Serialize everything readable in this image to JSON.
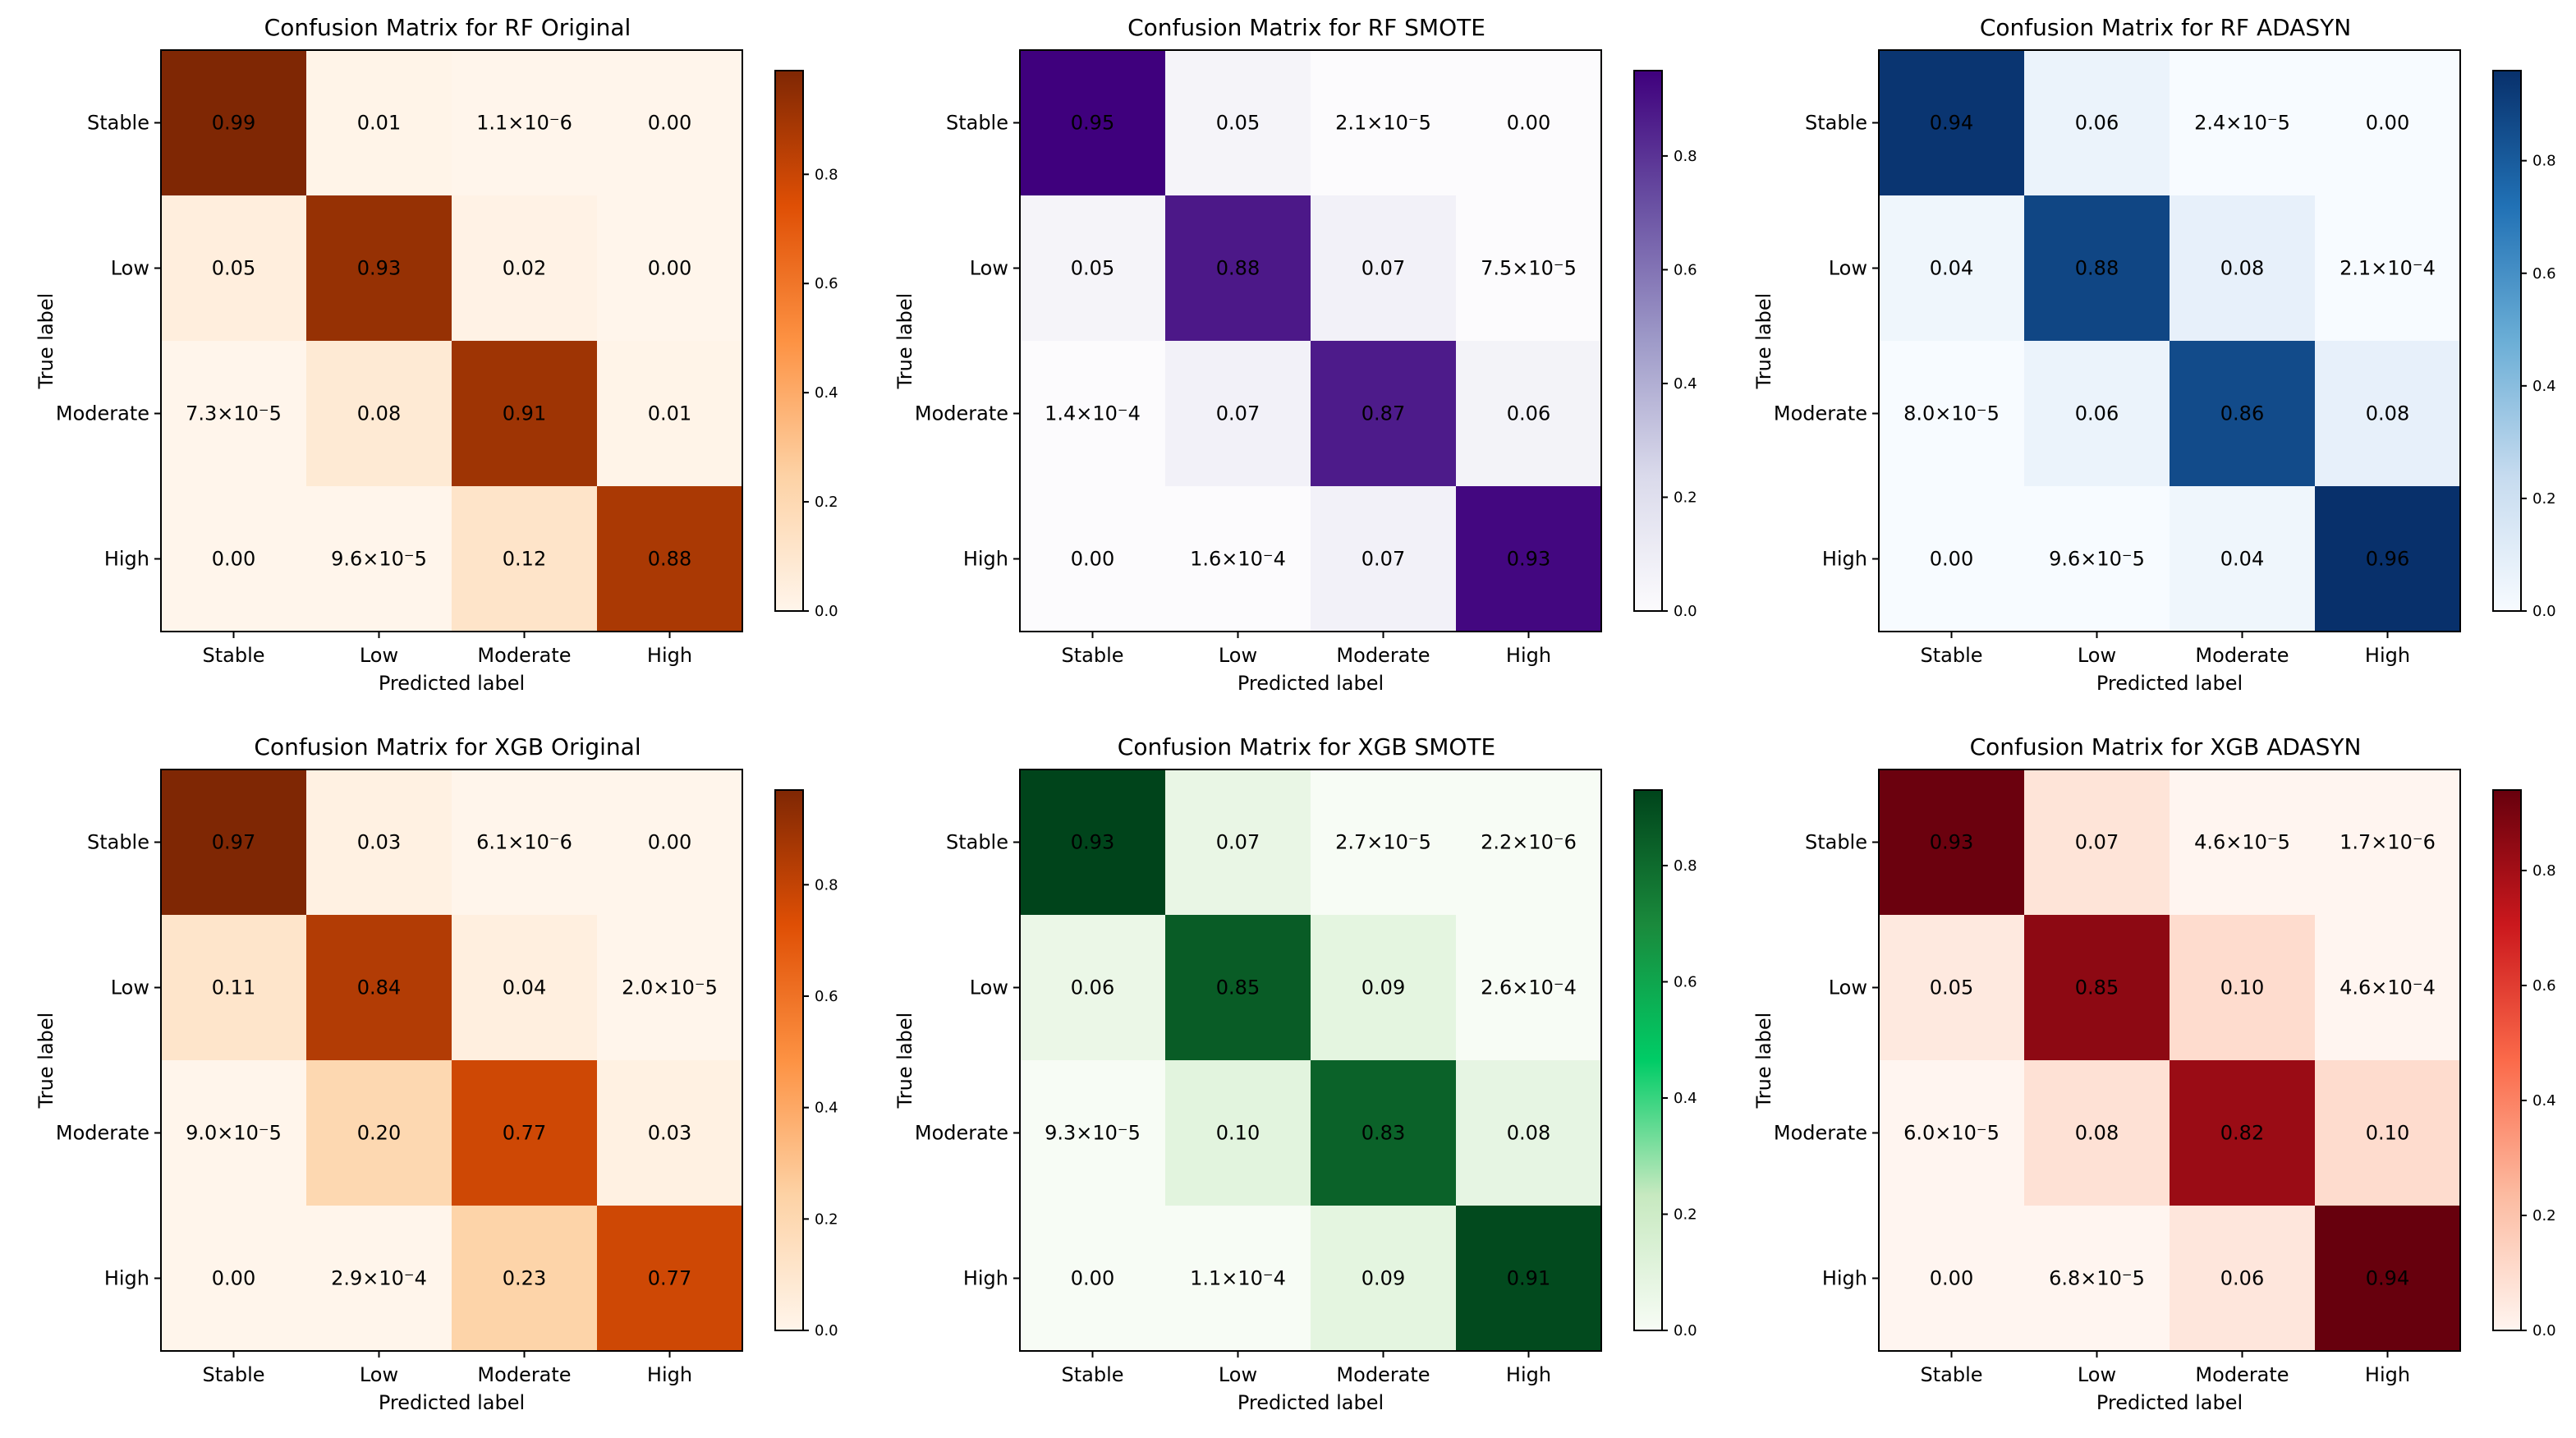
{
  "chart_data": [
    {
      "type": "heatmap",
      "title": "Confusion Matrix for RF Original",
      "xlabel": "Predicted label",
      "ylabel": "True label",
      "x_ticks": [
        "Stable",
        "Low",
        "Moderate",
        "High"
      ],
      "y_ticks": [
        "Stable",
        "Low",
        "Moderate",
        "High"
      ],
      "values": [
        [
          0.99,
          0.01,
          1.1e-06,
          0.0
        ],
        [
          0.05,
          0.93,
          0.02,
          0.0
        ],
        [
          7.3e-05,
          0.08,
          0.91,
          0.01
        ],
        [
          0.0,
          9.6e-05,
          0.12,
          0.88
        ]
      ],
      "labels": [
        [
          "0.99",
          "0.01",
          "1.1×10⁻6",
          "0.00"
        ],
        [
          "0.05",
          "0.93",
          "0.02",
          "0.00"
        ],
        [
          "7.3×10⁻5",
          "0.08",
          "0.91",
          "0.01"
        ],
        [
          "0.00",
          "9.6×10⁻5",
          "0.12",
          "0.88"
        ]
      ],
      "colorscale": [
        "#fff5eb",
        "#fdd2a5",
        "#fd9243",
        "#df4f05",
        "#7f2704"
      ],
      "vmin": 0,
      "vmax": 0.99,
      "colorbar_ticks": [
        0.0,
        0.2,
        0.4,
        0.6,
        0.8
      ],
      "colorbar_tick_labels": [
        "0.0",
        "0.2",
        "0.4",
        "0.6",
        "0.8"
      ]
    },
    {
      "type": "heatmap",
      "title": "Confusion Matrix for RF SMOTE",
      "xlabel": "Predicted label",
      "ylabel": "True label",
      "x_ticks": [
        "Stable",
        "Low",
        "Moderate",
        "High"
      ],
      "y_ticks": [
        "Stable",
        "Low",
        "Moderate",
        "High"
      ],
      "values": [
        [
          0.95,
          0.05,
          2.1e-05,
          0.0
        ],
        [
          0.05,
          0.88,
          0.07,
          7.5e-05
        ],
        [
          0.00014,
          0.07,
          0.87,
          0.06
        ],
        [
          0.0,
          0.00016,
          0.07,
          0.93
        ]
      ],
      "labels": [
        [
          "0.95",
          "0.05",
          "2.1×10⁻5",
          "0.00"
        ],
        [
          "0.05",
          "0.88",
          "0.07",
          "7.5×10⁻5"
        ],
        [
          "1.4×10⁻4",
          "0.07",
          "0.87",
          "0.06"
        ],
        [
          "0.00",
          "1.6×10⁻4",
          "0.07",
          "0.93"
        ]
      ],
      "colorscale": [
        "#fcfbfd",
        "#dadaeb",
        "#9e9ac8",
        "#6a51a3",
        "#3f007d"
      ],
      "vmin": 0,
      "vmax": 0.95,
      "colorbar_ticks": [
        0.0,
        0.2,
        0.4,
        0.6,
        0.8
      ],
      "colorbar_tick_labels": [
        "0.0",
        "0.2",
        "0.4",
        "0.6",
        "0.8"
      ]
    },
    {
      "type": "heatmap",
      "title": "Confusion Matrix for RF ADASYN",
      "xlabel": "Predicted label",
      "ylabel": "True label",
      "x_ticks": [
        "Stable",
        "Low",
        "Moderate",
        "High"
      ],
      "y_ticks": [
        "Stable",
        "Low",
        "Moderate",
        "High"
      ],
      "values": [
        [
          0.94,
          0.06,
          2.4e-05,
          0.0
        ],
        [
          0.04,
          0.88,
          0.08,
          0.00021
        ],
        [
          8e-05,
          0.06,
          0.86,
          0.08
        ],
        [
          0.0,
          9.6e-05,
          0.04,
          0.96
        ]
      ],
      "labels": [
        [
          "0.94",
          "0.06",
          "2.4×10⁻5",
          "0.00"
        ],
        [
          "0.04",
          "0.88",
          "0.08",
          "2.1×10⁻4"
        ],
        [
          "8.0×10⁻5",
          "0.06",
          "0.86",
          "0.08"
        ],
        [
          "0.00",
          "9.6×10⁻5",
          "0.04",
          "0.96"
        ]
      ],
      "colorscale": [
        "#f7fbff",
        "#c6dbef",
        "#6baed6",
        "#2171b5",
        "#08306b"
      ],
      "vmin": 0,
      "vmax": 0.96,
      "colorbar_ticks": [
        0.0,
        0.2,
        0.4,
        0.6,
        0.8
      ],
      "colorbar_tick_labels": [
        "0.0",
        "0.2",
        "0.4",
        "0.6",
        "0.8"
      ]
    },
    {
      "type": "heatmap",
      "title": "Confusion Matrix for XGB Original",
      "xlabel": "Predicted label",
      "ylabel": "True label",
      "x_ticks": [
        "Stable",
        "Low",
        "Moderate",
        "High"
      ],
      "y_ticks": [
        "Stable",
        "Low",
        "Moderate",
        "High"
      ],
      "values": [
        [
          0.97,
          0.03,
          6.1e-06,
          0.0
        ],
        [
          0.11,
          0.84,
          0.04,
          2e-05
        ],
        [
          9e-05,
          0.2,
          0.77,
          0.03
        ],
        [
          0.0,
          0.00029,
          0.23,
          0.77
        ]
      ],
      "labels": [
        [
          "0.97",
          "0.03",
          "6.1×10⁻6",
          "0.00"
        ],
        [
          "0.11",
          "0.84",
          "0.04",
          "2.0×10⁻5"
        ],
        [
          "9.0×10⁻5",
          "0.20",
          "0.77",
          "0.03"
        ],
        [
          "0.00",
          "2.9×10⁻4",
          "0.23",
          "0.77"
        ]
      ],
      "colorscale": [
        "#fff5eb",
        "#fdd2a5",
        "#fd9243",
        "#df4f05",
        "#7f2704"
      ],
      "vmin": 0,
      "vmax": 0.97,
      "colorbar_ticks": [
        0.0,
        0.2,
        0.4,
        0.6,
        0.8
      ],
      "colorbar_tick_labels": [
        "0.0",
        "0.2",
        "0.4",
        "0.6",
        "0.8"
      ]
    },
    {
      "type": "heatmap",
      "title": "Confusion Matrix for XGB SMOTE",
      "xlabel": "Predicted label",
      "ylabel": "True label",
      "x_ticks": [
        "Stable",
        "Low",
        "Moderate",
        "High"
      ],
      "y_ticks": [
        "Stable",
        "Low",
        "Moderate",
        "High"
      ],
      "values": [
        [
          0.93,
          0.07,
          2.7e-05,
          2.2e-06
        ],
        [
          0.06,
          0.85,
          0.09,
          0.00026
        ],
        [
          9.3e-05,
          0.1,
          0.83,
          0.08
        ],
        [
          0.0,
          0.00011,
          0.09,
          0.91
        ]
      ],
      "labels": [
        [
          "0.93",
          "0.07",
          "2.7×10⁻5",
          "2.2×10⁻6"
        ],
        [
          "0.06",
          "0.85",
          "0.09",
          "2.6×10⁻4"
        ],
        [
          "9.3×10⁻5",
          "0.10",
          "0.83",
          "0.08"
        ],
        [
          "0.00",
          "1.1×10⁻4",
          "0.09",
          "0.91"
        ]
      ],
      "colorscale": [
        "#f7fcf5",
        "#c7e9c0",
        "#00cc66",
        "#1a8a3c",
        "#00441b"
      ],
      "vmin": 0,
      "vmax": 0.93,
      "colorbar_ticks": [
        0.0,
        0.2,
        0.4,
        0.6,
        0.8
      ],
      "colorbar_tick_labels": [
        "0.0",
        "0.2",
        "0.4",
        "0.6",
        "0.8"
      ]
    },
    {
      "type": "heatmap",
      "title": "Confusion Matrix for XGB ADASYN",
      "xlabel": "Predicted label",
      "ylabel": "True label",
      "x_ticks": [
        "Stable",
        "Low",
        "Moderate",
        "High"
      ],
      "y_ticks": [
        "Stable",
        "Low",
        "Moderate",
        "High"
      ],
      "values": [
        [
          0.93,
          0.07,
          4.6e-05,
          1.7e-06
        ],
        [
          0.05,
          0.85,
          0.1,
          0.00046
        ],
        [
          6e-05,
          0.08,
          0.82,
          0.1
        ],
        [
          0.0,
          6.8e-05,
          0.06,
          0.94
        ]
      ],
      "labels": [
        [
          "0.93",
          "0.07",
          "4.6×10⁻5",
          "1.7×10⁻6"
        ],
        [
          "0.05",
          "0.85",
          "0.10",
          "4.6×10⁻4"
        ],
        [
          "6.0×10⁻5",
          "0.08",
          "0.82",
          "0.10"
        ],
        [
          "0.00",
          "6.8×10⁻5",
          "0.06",
          "0.94"
        ]
      ],
      "colorscale": [
        "#fff5f0",
        "#fcbba1",
        "#fb6a4a",
        "#cb181d",
        "#67000d"
      ],
      "vmin": 0,
      "vmax": 0.94,
      "colorbar_ticks": [
        0.0,
        0.2,
        0.4,
        0.6,
        0.8
      ],
      "colorbar_tick_labels": [
        "0.0",
        "0.2",
        "0.4",
        "0.6",
        "0.8"
      ]
    }
  ]
}
